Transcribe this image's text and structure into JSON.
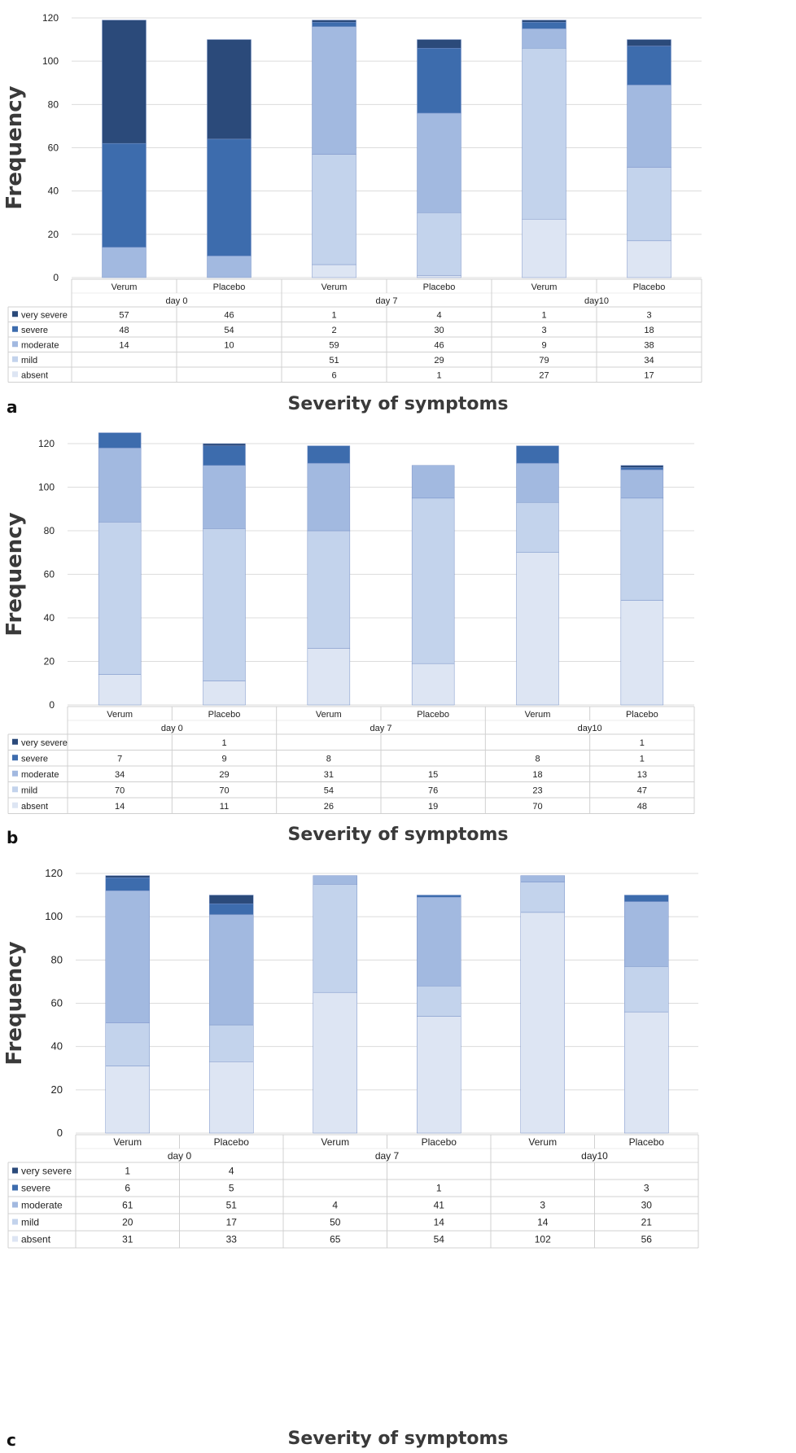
{
  "chart_data": [
    {
      "panel_label": "a",
      "type": "bar",
      "stacked": true,
      "ylabel": "Frequency",
      "xlabel": "Severity of symptoms",
      "ylim": [
        0,
        120
      ],
      "yticks": [
        0,
        20,
        40,
        60,
        80,
        100,
        120
      ],
      "grid": true,
      "groups": [
        "day 0",
        "day 7",
        "day10"
      ],
      "categories": [
        "Verum",
        "Placebo",
        "Verum",
        "Placebo",
        "Verum",
        "Placebo"
      ],
      "series": [
        {
          "name": "very severe",
          "color": "#2b4a7a",
          "values": [
            57,
            46,
            1,
            4,
            1,
            3
          ]
        },
        {
          "name": "severe",
          "color": "#3d6cad",
          "values": [
            48,
            54,
            2,
            30,
            3,
            18
          ]
        },
        {
          "name": "moderate",
          "color": "#a2b9e0",
          "values": [
            14,
            10,
            59,
            46,
            9,
            38
          ]
        },
        {
          "name": "mild",
          "color": "#c3d3ec",
          "values": [
            null,
            null,
            51,
            29,
            79,
            34
          ]
        },
        {
          "name": "absent",
          "color": "#dde5f3",
          "values": [
            null,
            null,
            6,
            1,
            27,
            17
          ]
        }
      ]
    },
    {
      "panel_label": "b",
      "type": "bar",
      "stacked": true,
      "ylabel": "Frequency",
      "xlabel": "Severity of symptoms",
      "ylim": [
        0,
        120
      ],
      "yticks": [
        0,
        20,
        40,
        60,
        80,
        100,
        120
      ],
      "grid": true,
      "groups": [
        "day 0",
        "day 7",
        "day10"
      ],
      "categories": [
        "Verum",
        "Placebo",
        "Verum",
        "Placebo",
        "Verum",
        "Placebo"
      ],
      "series": [
        {
          "name": "very severe",
          "color": "#2b4a7a",
          "values": [
            null,
            1,
            null,
            null,
            null,
            1
          ]
        },
        {
          "name": "severe",
          "color": "#3d6cad",
          "values": [
            7,
            9,
            8,
            null,
            8,
            1
          ]
        },
        {
          "name": "moderate",
          "color": "#a2b9e0",
          "values": [
            34,
            29,
            31,
            15,
            18,
            13
          ]
        },
        {
          "name": "mild",
          "color": "#c3d3ec",
          "values": [
            70,
            70,
            54,
            76,
            23,
            47
          ]
        },
        {
          "name": "absent",
          "color": "#dde5f3",
          "values": [
            14,
            11,
            26,
            19,
            70,
            48
          ]
        }
      ]
    },
    {
      "panel_label": "c",
      "type": "bar",
      "stacked": true,
      "ylabel": "Frequency",
      "xlabel": "Severity of symptoms",
      "ylim": [
        0,
        120
      ],
      "yticks": [
        0,
        20,
        40,
        60,
        80,
        100,
        120
      ],
      "grid": true,
      "groups": [
        "day 0",
        "day 7",
        "day10"
      ],
      "categories": [
        "Verum",
        "Placebo",
        "Verum",
        "Placebo",
        "Verum",
        "Placebo"
      ],
      "series": [
        {
          "name": "very severe",
          "color": "#2b4a7a",
          "values": [
            1,
            4,
            null,
            null,
            null,
            null
          ]
        },
        {
          "name": "severe",
          "color": "#3d6cad",
          "values": [
            6,
            5,
            null,
            1,
            null,
            3
          ]
        },
        {
          "name": "moderate",
          "color": "#a2b9e0",
          "values": [
            61,
            51,
            4,
            41,
            3,
            30
          ]
        },
        {
          "name": "mild",
          "color": "#c3d3ec",
          "values": [
            20,
            17,
            50,
            14,
            14,
            21
          ]
        },
        {
          "name": "absent",
          "color": "#dde5f3",
          "values": [
            31,
            33,
            65,
            54,
            102,
            56
          ]
        }
      ]
    }
  ]
}
